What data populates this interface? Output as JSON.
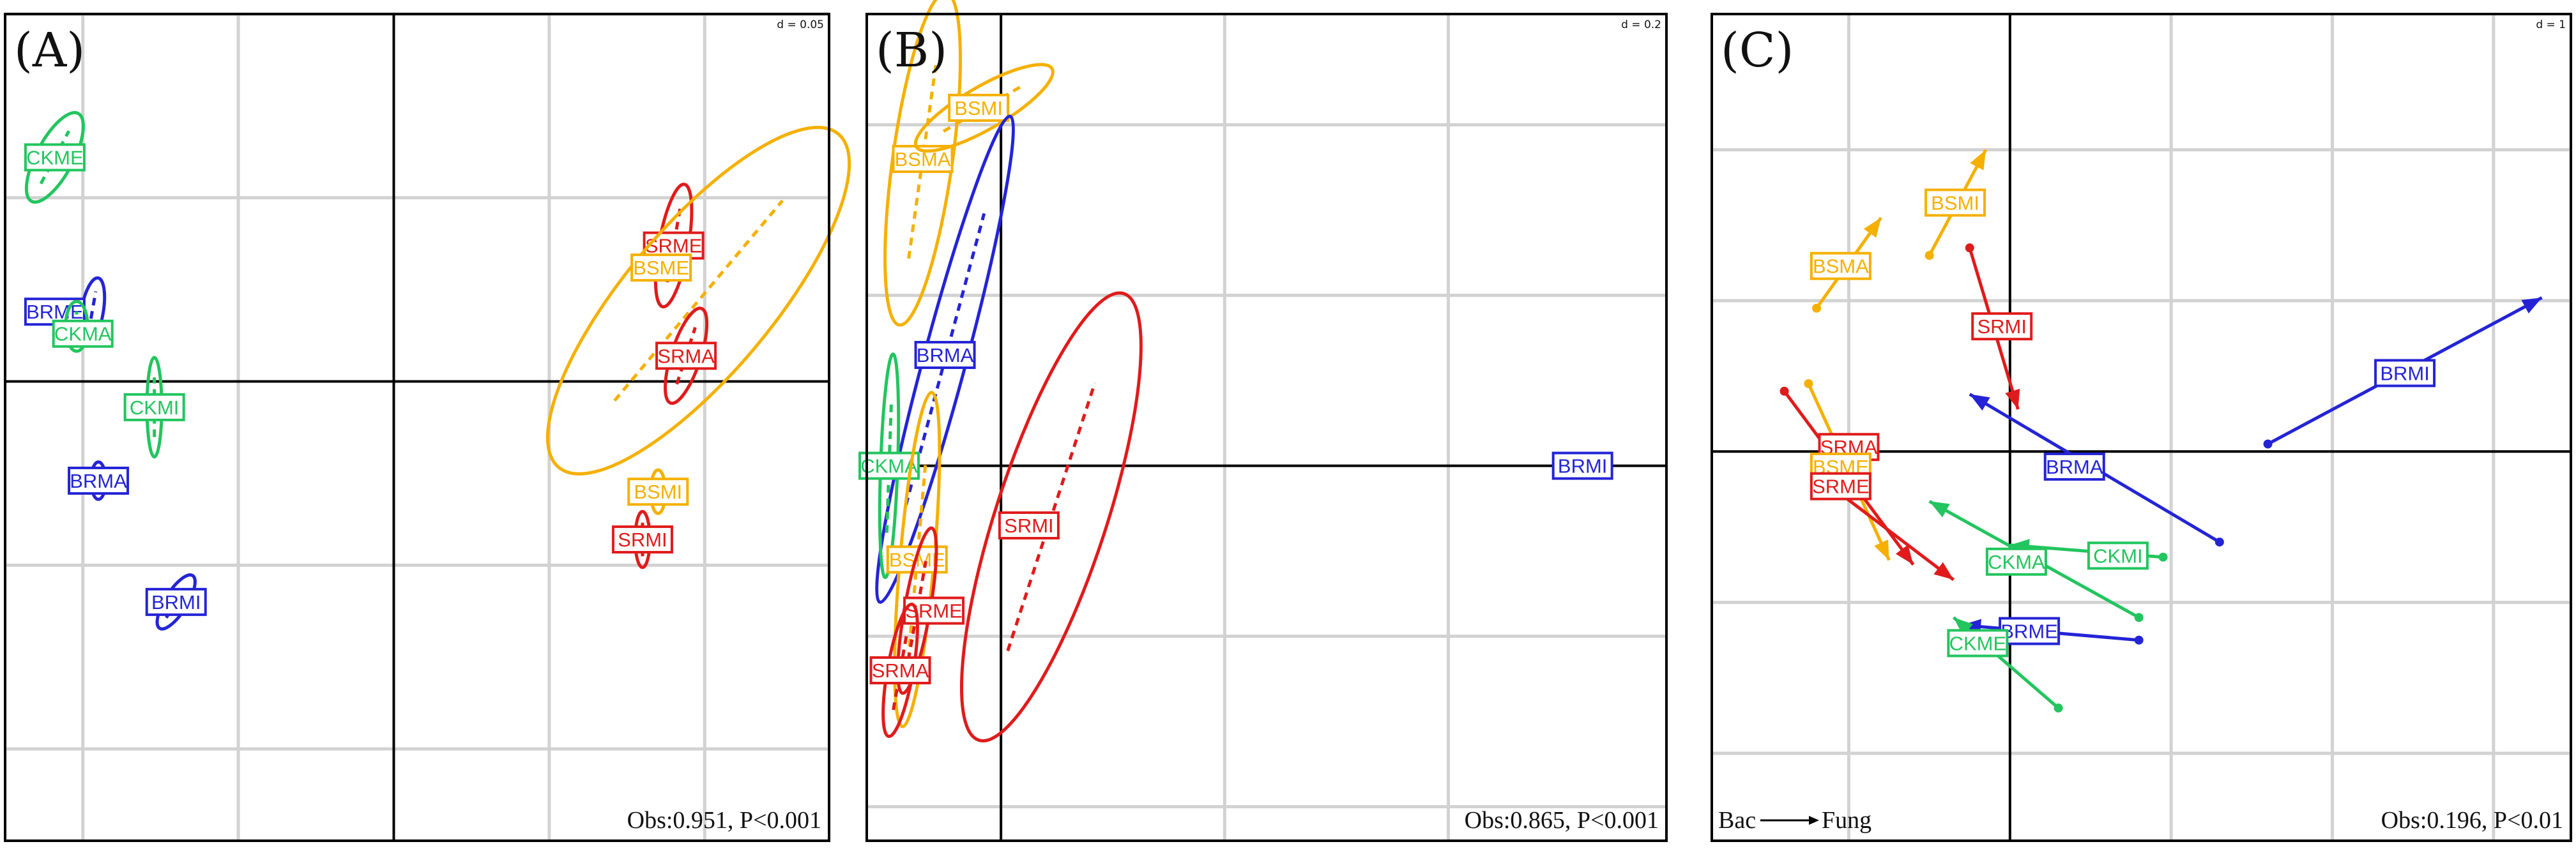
{
  "colors": {
    "CK": "#22c55e",
    "BR": "#2424d6",
    "BS": "#f5b000",
    "SR": "#e01b1b",
    "grid": "#d2d2d2",
    "axis": "#000000"
  },
  "chart_data": [
    {
      "type": "scatter",
      "panel": "(A)",
      "d_label": "d = 0.05",
      "stat": "Obs:0.951, P<0.001",
      "xlim": [
        -0.125,
        0.14
      ],
      "ylim": [
        -0.125,
        0.1
      ],
      "grid_step": 0.05,
      "samples": [
        {
          "name": "CKME",
          "group": "CK",
          "center": [
            -0.109,
            0.061
          ],
          "label": [
            -0.109,
            0.061
          ],
          "ellipse": [
            0.005,
            0.016,
            -62
          ]
        },
        {
          "name": "BRME",
          "group": "BR",
          "center": [
            -0.097,
            0.019
          ],
          "label": [
            -0.109,
            0.019
          ],
          "ellipse": [
            0.003,
            0.011,
            -80
          ]
        },
        {
          "name": "CKMA",
          "group": "CK",
          "center": [
            -0.102,
            0.015
          ],
          "label": [
            -0.1,
            0.013
          ],
          "ellipse": [
            0.003,
            0.008,
            -90
          ]
        },
        {
          "name": "CKMI",
          "group": "CK",
          "center": [
            -0.077,
            -0.007
          ],
          "label": [
            -0.077,
            -0.007
          ],
          "ellipse": [
            0.002,
            0.016,
            -90
          ]
        },
        {
          "name": "BRMA",
          "group": "BR",
          "center": [
            -0.095,
            -0.027
          ],
          "label": [
            -0.095,
            -0.027
          ],
          "ellipse": [
            0.002,
            0.006,
            -90
          ]
        },
        {
          "name": "BRMI",
          "group": "BR",
          "center": [
            -0.07,
            -0.06
          ],
          "label": [
            -0.07,
            -0.06
          ],
          "ellipse": [
            0.003,
            0.01,
            -58
          ]
        },
        {
          "name": "SRME",
          "group": "SR",
          "center": [
            0.09,
            0.037
          ],
          "label": [
            0.09,
            0.037
          ],
          "ellipse": [
            0.004,
            0.02,
            -80
          ]
        },
        {
          "name": "BSME",
          "group": "BS",
          "center": [
            0.098,
            0.022
          ],
          "label": [
            0.086,
            0.031
          ],
          "ellipse": [
            0.02,
            0.07,
            -50
          ]
        },
        {
          "name": "SRMA",
          "group": "SR",
          "center": [
            0.094,
            0.007
          ],
          "label": [
            0.094,
            0.007
          ],
          "ellipse": [
            0.004,
            0.016,
            -72
          ]
        },
        {
          "name": "BSMI",
          "group": "BS",
          "center": [
            0.085,
            -0.03
          ],
          "label": [
            0.085,
            -0.03
          ],
          "ellipse": [
            0.002,
            0.007,
            -90
          ]
        },
        {
          "name": "SRMI",
          "group": "SR",
          "center": [
            0.08,
            -0.043
          ],
          "label": [
            0.08,
            -0.043
          ],
          "ellipse": [
            0.002,
            0.009,
            -90
          ]
        }
      ]
    },
    {
      "type": "scatter",
      "panel": "(B)",
      "d_label": "d = 0.2",
      "stat": "Obs:0.865, P<0.001",
      "xlim": [
        -0.24,
        1.19
      ],
      "ylim": [
        -0.88,
        1.06
      ],
      "grid_step": 0.4,
      "samples": [
        {
          "name": "BSMA",
          "group": "BS",
          "center": [
            -0.14,
            0.72
          ],
          "label": [
            -0.14,
            0.72
          ],
          "ellipse": [
            0.07,
            0.3,
            -82
          ]
        },
        {
          "name": "BSMI",
          "group": "BS",
          "center": [
            -0.03,
            0.84
          ],
          "label": [
            -0.04,
            0.84
          ],
          "ellipse": [
            0.05,
            0.14,
            -30
          ]
        },
        {
          "name": "BRMA",
          "group": "BR",
          "center": [
            -0.1,
            0.25
          ],
          "label": [
            -0.1,
            0.26
          ],
          "ellipse": [
            0.05,
            0.45,
            -75
          ]
        },
        {
          "name": "CKMA",
          "group": "CK",
          "center": [
            -0.2,
            0.0
          ],
          "label": [
            -0.2,
            0.0
          ],
          "ellipse": [
            0.02,
            0.2,
            -88
          ]
        },
        {
          "name": "BSME",
          "group": "BS",
          "center": [
            -0.15,
            -0.22
          ],
          "label": [
            -0.15,
            -0.22
          ],
          "ellipse": [
            0.04,
            0.3,
            -85
          ]
        },
        {
          "name": "SRMI",
          "group": "SR",
          "center": [
            0.09,
            -0.12
          ],
          "label": [
            0.05,
            -0.14
          ],
          "ellipse": [
            0.13,
            0.42,
            -72
          ]
        },
        {
          "name": "SRME",
          "group": "SR",
          "center": [
            -0.15,
            -0.34
          ],
          "label": [
            -0.12,
            -0.34
          ],
          "ellipse": [
            0.03,
            0.15,
            -80
          ]
        },
        {
          "name": "SRMA",
          "group": "SR",
          "center": [
            -0.18,
            -0.48
          ],
          "label": [
            -0.18,
            -0.48
          ],
          "ellipse": [
            0.03,
            0.12,
            -80
          ]
        },
        {
          "name": "BRMI",
          "group": "BR",
          "center": [
            1.04,
            0.03
          ],
          "label": [
            1.04,
            0.0
          ],
          "ellipse": null
        }
      ]
    },
    {
      "type": "scatter",
      "panel": "(C)",
      "d_label": "d = 1",
      "stat": "Obs:0.196, P<0.01",
      "caption_left": "Bac",
      "caption_right": "Fung",
      "xlim": [
        -1.85,
        3.48
      ],
      "ylim": [
        -2.58,
        2.9
      ],
      "grid_step": 1,
      "samples": [
        {
          "name": "BSMI",
          "group": "BS",
          "bac": [
            -0.5,
            1.3
          ],
          "fung": [
            -0.15,
            2.0
          ],
          "label": [
            -0.34,
            1.65
          ]
        },
        {
          "name": "BSMA",
          "group": "BS",
          "bac": [
            -1.2,
            0.95
          ],
          "fung": [
            -0.8,
            1.55
          ],
          "label": [
            -1.05,
            1.23
          ]
        },
        {
          "name": "SRMI",
          "group": "SR",
          "bac": [
            -0.25,
            1.35
          ],
          "fung": [
            0.05,
            0.28
          ],
          "label": [
            -0.05,
            0.83
          ]
        },
        {
          "name": "BRMI",
          "group": "BR",
          "bac": [
            1.6,
            0.05
          ],
          "fung": [
            3.3,
            1.02
          ],
          "label": [
            2.45,
            0.52
          ]
        },
        {
          "name": "BRMA",
          "group": "BR",
          "bac": [
            1.3,
            -0.6
          ],
          "fung": [
            -0.25,
            0.38
          ],
          "label": [
            0.4,
            -0.1
          ]
        },
        {
          "name": "SRMA",
          "group": "SR",
          "bac": [
            -1.4,
            0.4
          ],
          "fung": [
            -0.6,
            -0.75
          ],
          "label": [
            -1.0,
            0.03
          ]
        },
        {
          "name": "BSME",
          "group": "BS",
          "bac": [
            -1.25,
            0.45
          ],
          "fung": [
            -0.75,
            -0.72
          ],
          "label": [
            -1.05,
            -0.1
          ]
        },
        {
          "name": "SRME",
          "group": "SR",
          "bac": [
            -1.15,
            -0.2
          ],
          "fung": [
            -0.35,
            -0.85
          ],
          "label": [
            -1.05,
            -0.23
          ]
        },
        {
          "name": "CKMI",
          "group": "CK",
          "bac": [
            0.95,
            -0.7
          ],
          "fung": [
            0.0,
            -0.62
          ],
          "label": [
            0.67,
            -0.69
          ]
        },
        {
          "name": "CKMA",
          "group": "CK",
          "bac": [
            0.8,
            -1.1
          ],
          "fung": [
            -0.5,
            -0.33
          ],
          "label": [
            0.04,
            -0.73
          ]
        },
        {
          "name": "BRME",
          "group": "BR",
          "bac": [
            0.8,
            -1.25
          ],
          "fung": [
            -0.3,
            -1.15
          ],
          "label": [
            0.12,
            -1.19
          ]
        },
        {
          "name": "CKME",
          "group": "CK",
          "bac": [
            0.3,
            -1.7
          ],
          "fung": [
            -0.35,
            -1.1
          ],
          "label": [
            -0.2,
            -1.27
          ]
        }
      ]
    }
  ]
}
